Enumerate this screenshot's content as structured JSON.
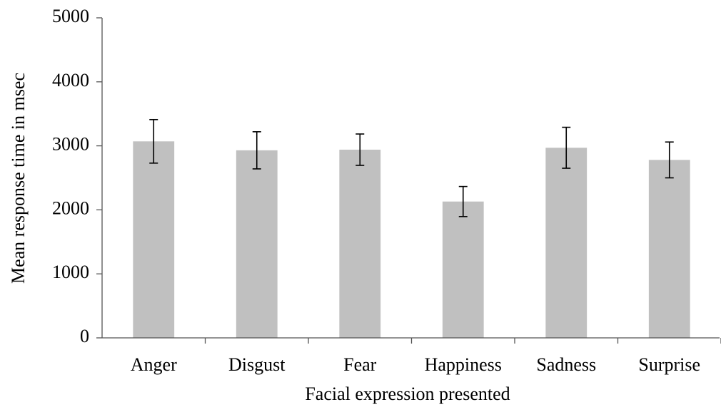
{
  "chart_data": {
    "type": "bar",
    "x_label": "Facial expression presented",
    "y_label": "Mean response time in msec",
    "categories": [
      "Anger",
      "Disgust",
      "Fear",
      "Happiness",
      "Sadness",
      "Surprise"
    ],
    "values": [
      3070,
      2930,
      2940,
      2130,
      2970,
      2780
    ],
    "errors": [
      340,
      290,
      245,
      235,
      320,
      280
    ],
    "color": "#c0c0c0",
    "error_color": "#000000",
    "ylim": [
      0,
      5000
    ],
    "yticks": [
      0,
      1000,
      2000,
      3000,
      4000,
      5000
    ],
    "grid": false
  }
}
